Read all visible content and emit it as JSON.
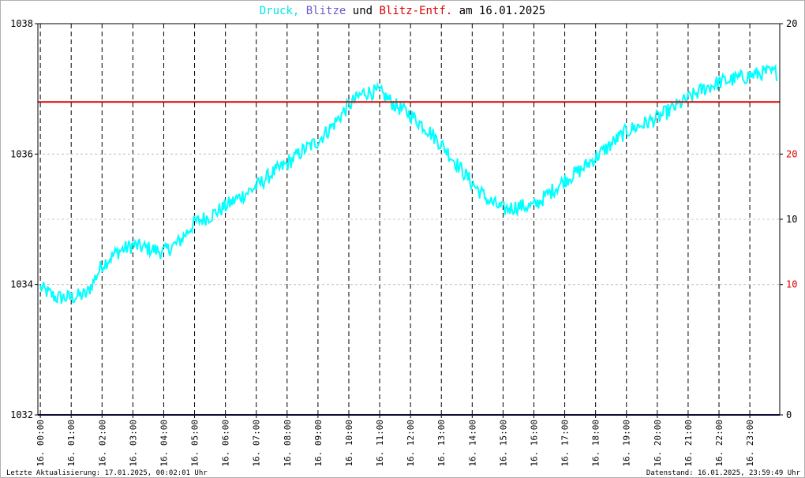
{
  "chart_data": {
    "type": "line",
    "title_parts": [
      {
        "text": "Druck,",
        "color": "#00e6e6"
      },
      {
        "text": "Blitze",
        "color": "#6a5acd"
      },
      {
        "text": "und",
        "color": "#000000"
      },
      {
        "text": "Blitz-Entf.",
        "color": "#dd0000"
      },
      {
        "text": "am 16.01.2025",
        "color": "#000000"
      }
    ],
    "y_left": {
      "ylim": [
        1032,
        1038
      ],
      "ticks": [
        {
          "value": 1032,
          "label": "1032"
        },
        {
          "value": 1034,
          "label": "1034"
        },
        {
          "value": 1036,
          "label": "1036"
        },
        {
          "value": 1038,
          "label": "1038"
        }
      ]
    },
    "y_right": {
      "ticks": [
        {
          "frac": 0.0,
          "label": "0",
          "color": "#000000"
        },
        {
          "frac": 0.3333,
          "label": "10",
          "color": "#dd0000"
        },
        {
          "frac": 0.5,
          "label": "10",
          "color": "#000000"
        },
        {
          "frac": 0.6667,
          "label": "20",
          "color": "#dd0000"
        },
        {
          "frac": 1.0,
          "label": "20",
          "color": "#000000"
        }
      ]
    },
    "x_tick_labels": [
      "16. 00:00",
      "16. 01:00",
      "16. 02:00",
      "16. 03:00",
      "16. 04:00",
      "16. 05:00",
      "16. 06:00",
      "16. 07:00",
      "16. 08:00",
      "16. 09:00",
      "16. 10:00",
      "16. 11:00",
      "16. 12:00",
      "16. 13:00",
      "16. 14:00",
      "16. 15:00",
      "16. 16:00",
      "16. 17:00",
      "16. 18:00",
      "16. 19:00",
      "16. 20:00",
      "16. 21:00",
      "16. 22:00",
      "16. 23:00"
    ],
    "series": [
      {
        "name": "Druck",
        "color": "#00ffff",
        "x_hours": [
          0,
          0.5,
          1,
          1.5,
          2,
          2.5,
          3,
          3.5,
          4,
          4.5,
          5,
          5.5,
          6,
          6.5,
          7,
          7.5,
          8,
          8.5,
          9,
          9.5,
          10,
          10.5,
          11,
          11.5,
          12,
          12.5,
          13,
          13.5,
          14,
          14.5,
          15,
          15.5,
          16,
          16.5,
          17,
          17.5,
          18,
          18.5,
          19,
          19.5,
          20,
          20.5,
          21,
          21.5,
          22,
          22.5,
          23,
          23.5,
          24
        ],
        "y": [
          1033.95,
          1033.8,
          1033.8,
          1033.85,
          1034.3,
          1034.5,
          1034.6,
          1034.55,
          1034.5,
          1034.65,
          1034.95,
          1035.05,
          1035.2,
          1035.35,
          1035.5,
          1035.7,
          1035.85,
          1036.05,
          1036.2,
          1036.45,
          1036.75,
          1036.95,
          1036.95,
          1036.75,
          1036.6,
          1036.4,
          1036.15,
          1035.85,
          1035.55,
          1035.3,
          1035.15,
          1035.2,
          1035.2,
          1035.4,
          1035.6,
          1035.75,
          1035.95,
          1036.15,
          1036.35,
          1036.45,
          1036.55,
          1036.7,
          1036.85,
          1037.0,
          1037.1,
          1037.15,
          1037.2,
          1037.25,
          1037.25
        ],
        "noise_amplitude": 0.12
      },
      {
        "name": "Blitz-Entf.",
        "color": "#dd0000",
        "constant_y": 1036.8
      },
      {
        "name": "Blitze",
        "color": "#191970",
        "constant_y": 1032
      }
    ],
    "grid": true
  },
  "footer": {
    "left": "Letzte Aktualisierung: 17.01.2025, 00:02:01 Uhr",
    "right": "Datenstand: 16.01.2025, 23:59:49 Uhr"
  }
}
